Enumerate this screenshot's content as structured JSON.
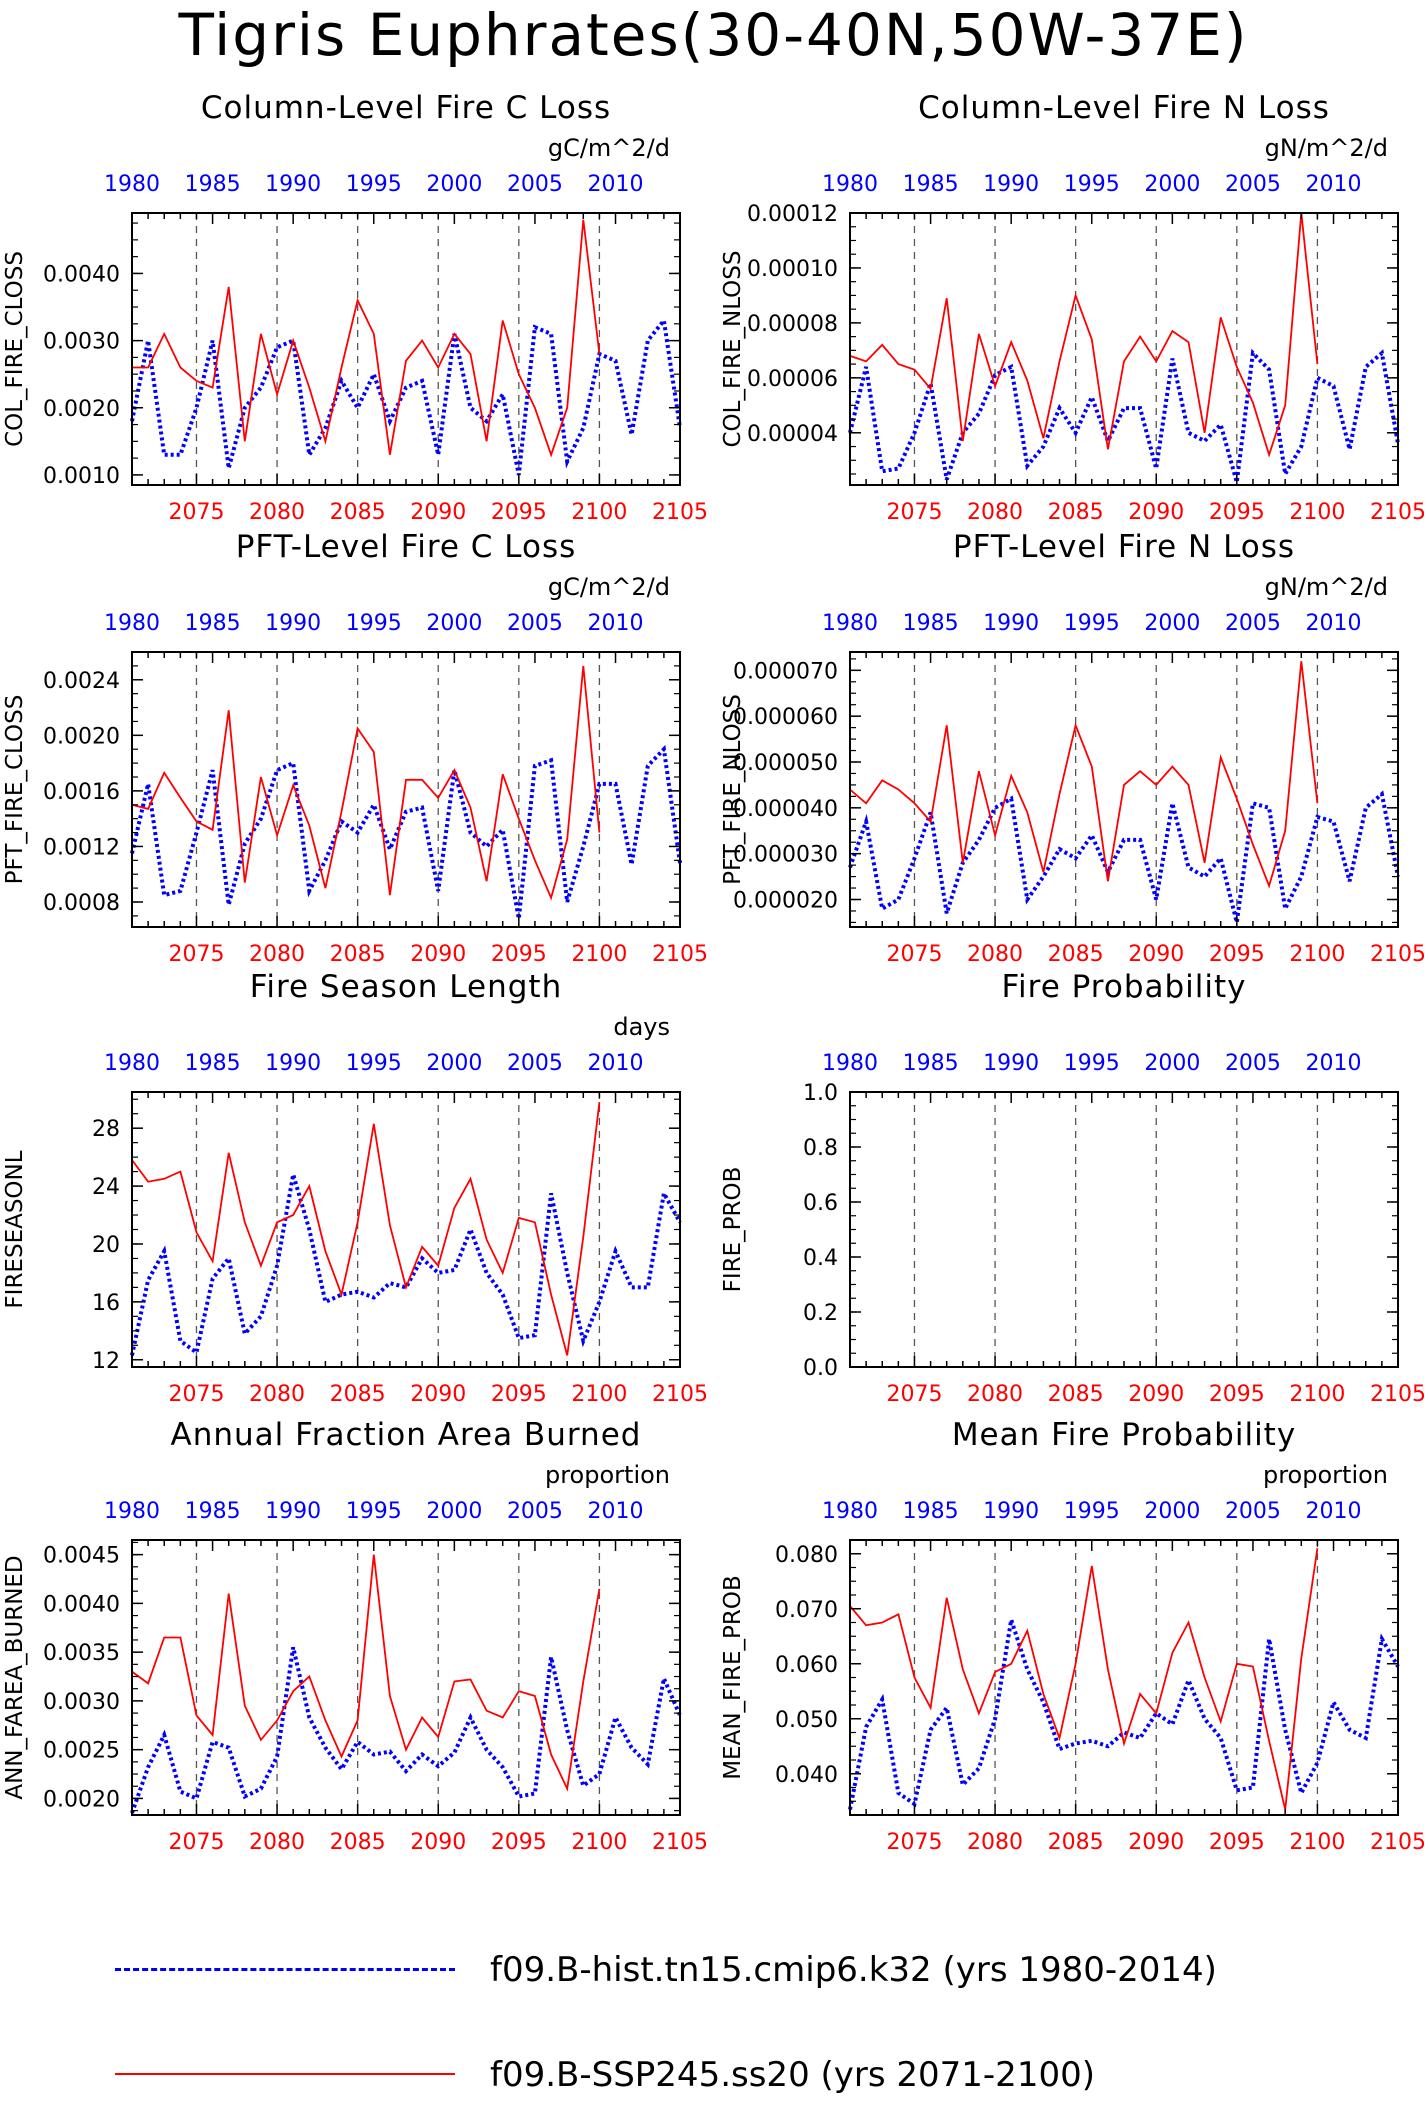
{
  "title": "Tigris Euphrates(30-40N,50W-37E)",
  "colors": {
    "hist": "#0000ff",
    "ssp": "#ff0000",
    "axis": "#000000",
    "grid": "#555555"
  },
  "legend": [
    {
      "name": "f09.B-hist.tn15.cmip6.k32 (yrs 1980-2014)",
      "color": "#0000ff",
      "style": "dashed"
    },
    {
      "name": "f09.B-SSP245.ss20 (yrs 2071-2100)",
      "color": "#ff0000",
      "style": "solid"
    }
  ],
  "chart_data": [
    {
      "type": "line",
      "title": "Column-Level Fire C Loss",
      "units": "gC/m^2/d",
      "ylabel": "COL_FIRE_CLOSS",
      "ylim": [
        0.00085,
        0.0049
      ],
      "yticks": [
        "0.0010",
        "0.0020",
        "0.0030",
        "0.0040"
      ],
      "top_axis": {
        "range": [
          1980,
          2014
        ],
        "ticks": [
          "1980",
          "1985",
          "1990",
          "1995",
          "2000",
          "2005",
          "2010"
        ]
      },
      "bottom_axis": {
        "range": [
          2071,
          2105
        ],
        "ticks": [
          "2075",
          "2080",
          "2085",
          "2090",
          "2095",
          "2100",
          "2105"
        ]
      },
      "grid_x": [
        2075,
        2080,
        2085,
        2090,
        2095,
        2100
      ],
      "series": [
        {
          "name": "f09.B-hist.tn15.cmip6.k32 (yrs 1980-2014)",
          "axis": "top",
          "start": 1980,
          "values": [
            0.0018,
            0.003,
            0.0013,
            0.0013,
            0.002,
            0.003,
            0.0011,
            0.002,
            0.0023,
            0.0029,
            0.003,
            0.0013,
            0.0017,
            0.0024,
            0.002,
            0.0025,
            0.0018,
            0.0023,
            0.0024,
            0.0013,
            0.0031,
            0.002,
            0.0018,
            0.0022,
            0.001,
            0.0032,
            0.0031,
            0.0012,
            0.0017,
            0.0028,
            0.0027,
            0.0016,
            0.003,
            0.0033,
            0.0017
          ]
        },
        {
          "name": "f09.B-SSP245.ss20 (yrs 2071-2100)",
          "axis": "bottom",
          "start": 2071,
          "values": [
            0.0026,
            0.0026,
            0.0031,
            0.0026,
            0.0024,
            0.0023,
            0.0038,
            0.0015,
            0.0031,
            0.0022,
            0.003,
            0.0023,
            0.0015,
            0.0026,
            0.0036,
            0.0031,
            0.0013,
            0.0027,
            0.003,
            0.0026,
            0.0031,
            0.0028,
            0.0015,
            0.0033,
            0.0025,
            0.002,
            0.0013,
            0.002,
            0.0048,
            0.0028
          ]
        }
      ]
    },
    {
      "type": "line",
      "title": "Column-Level Fire N Loss",
      "units": "gN/m^2/d",
      "ylabel": "COL_FIRE_NLOSS",
      "ylim": [
        2.1e-05,
        0.00012
      ],
      "yticks": [
        "0.00004",
        "0.00006",
        "0.00008",
        "0.00010",
        "0.00012"
      ],
      "top_axis": {
        "range": [
          1980,
          2014
        ],
        "ticks": [
          "1980",
          "1985",
          "1990",
          "1995",
          "2000",
          "2005",
          "2010"
        ]
      },
      "bottom_axis": {
        "range": [
          2071,
          2105
        ],
        "ticks": [
          "2075",
          "2080",
          "2085",
          "2090",
          "2095",
          "2100",
          "2105"
        ]
      },
      "grid_x": [
        2075,
        2080,
        2085,
        2090,
        2095,
        2100
      ],
      "series": [
        {
          "name": "f09.B-hist.tn15.cmip6.k32 (yrs 1980-2014)",
          "axis": "top",
          "start": 1980,
          "values": [
            4e-05,
            6.4e-05,
            2.6e-05,
            2.7e-05,
            4e-05,
            5.8e-05,
            2.3e-05,
            4e-05,
            4.7e-05,
            6.1e-05,
            6.4e-05,
            2.8e-05,
            3.5e-05,
            4.9e-05,
            4e-05,
            5.3e-05,
            3.7e-05,
            4.9e-05,
            4.9e-05,
            2.7e-05,
            6.7e-05,
            4e-05,
            3.7e-05,
            4.3e-05,
            2.2e-05,
            6.9e-05,
            6.3e-05,
            2.5e-05,
            3.5e-05,
            6e-05,
            5.7e-05,
            3.4e-05,
            6.4e-05,
            6.9e-05,
            3.6e-05
          ]
        },
        {
          "name": "f09.B-SSP245.ss20 (yrs 2071-2100)",
          "axis": "bottom",
          "start": 2071,
          "values": [
            6.8e-05,
            6.6e-05,
            7.2e-05,
            6.5e-05,
            6.3e-05,
            5.6e-05,
            8.9e-05,
            3.7e-05,
            7.6e-05,
            5.7e-05,
            7.3e-05,
            5.9e-05,
            3.8e-05,
            6.6e-05,
            9e-05,
            7.4e-05,
            3.4e-05,
            6.6e-05,
            7.5e-05,
            6.6e-05,
            7.7e-05,
            7.3e-05,
            4e-05,
            8.2e-05,
            6.4e-05,
            5.1e-05,
            3.2e-05,
            5e-05,
            0.00012,
            6.5e-05
          ]
        }
      ]
    },
    {
      "type": "line",
      "title": "PFT-Level Fire C Loss",
      "units": "gC/m^2/d",
      "ylabel": "PFT_FIRE_CLOSS",
      "ylim": [
        0.00062,
        0.0026
      ],
      "yticks": [
        "0.0008",
        "0.0012",
        "0.0016",
        "0.0020",
        "0.0024"
      ],
      "top_axis": {
        "range": [
          1980,
          2014
        ],
        "ticks": [
          "1980",
          "1985",
          "1990",
          "1995",
          "2000",
          "2005",
          "2010"
        ]
      },
      "bottom_axis": {
        "range": [
          2071,
          2105
        ],
        "ticks": [
          "2075",
          "2080",
          "2085",
          "2090",
          "2095",
          "2100",
          "2105"
        ]
      },
      "grid_x": [
        2075,
        2080,
        2085,
        2090,
        2095,
        2100
      ],
      "series": [
        {
          "name": "f09.B-hist.tn15.cmip6.k32 (yrs 1980-2014)",
          "axis": "top",
          "start": 1980,
          "values": [
            0.00115,
            0.00165,
            0.00085,
            0.00088,
            0.0013,
            0.00175,
            0.00078,
            0.00122,
            0.0014,
            0.00175,
            0.0018,
            0.00088,
            0.0011,
            0.00138,
            0.0013,
            0.0015,
            0.00118,
            0.00145,
            0.00148,
            0.00088,
            0.00175,
            0.0013,
            0.0012,
            0.00132,
            0.00068,
            0.00178,
            0.00182,
            0.0008,
            0.0012,
            0.00165,
            0.00165,
            0.00107,
            0.00178,
            0.0019,
            0.00108
          ]
        },
        {
          "name": "f09.B-SSP245.ss20 (yrs 2071-2100)",
          "axis": "bottom",
          "start": 2071,
          "values": [
            0.0015,
            0.00147,
            0.00173,
            0.00155,
            0.00138,
            0.00132,
            0.00218,
            0.00094,
            0.0017,
            0.00128,
            0.00164,
            0.00135,
            0.0009,
            0.00145,
            0.00205,
            0.00188,
            0.00085,
            0.00168,
            0.00168,
            0.00155,
            0.00175,
            0.00148,
            0.00095,
            0.00172,
            0.0014,
            0.0011,
            0.00083,
            0.00125,
            0.0025,
            0.0013
          ]
        }
      ]
    },
    {
      "type": "line",
      "title": "PFT-Level Fire N Loss",
      "units": "gN/m^2/d",
      "ylabel": "PFT_FIRE_NLOSS",
      "ylim": [
        1.4e-05,
        7.4e-05
      ],
      "yticks": [
        "0.000020",
        "0.000030",
        "0.000040",
        "0.000050",
        "0.000060",
        "0.000070"
      ],
      "top_axis": {
        "range": [
          1980,
          2014
        ],
        "ticks": [
          "1980",
          "1985",
          "1990",
          "1995",
          "2000",
          "2005",
          "2010"
        ]
      },
      "bottom_axis": {
        "range": [
          2071,
          2105
        ],
        "ticks": [
          "2075",
          "2080",
          "2085",
          "2090",
          "2095",
          "2100",
          "2105"
        ]
      },
      "grid_x": [
        2075,
        2080,
        2085,
        2090,
        2095,
        2100
      ],
      "series": [
        {
          "name": "f09.B-hist.tn15.cmip6.k32 (yrs 1980-2014)",
          "axis": "top",
          "start": 1980,
          "values": [
            2.7e-05,
            3.7e-05,
            1.8e-05,
            2e-05,
            2.9e-05,
            3.9e-05,
            1.7e-05,
            2.8e-05,
            3.3e-05,
            4e-05,
            4.2e-05,
            2e-05,
            2.5e-05,
            3.1e-05,
            2.9e-05,
            3.4e-05,
            2.6e-05,
            3.3e-05,
            3.3e-05,
            2e-05,
            4.1e-05,
            2.7e-05,
            2.5e-05,
            2.9e-05,
            1.5e-05,
            4.1e-05,
            4e-05,
            1.8e-05,
            2.5e-05,
            3.8e-05,
            3.7e-05,
            2.4e-05,
            4e-05,
            4.3e-05,
            2.5e-05
          ]
        },
        {
          "name": "f09.B-SSP245.ss20 (yrs 2071-2100)",
          "axis": "bottom",
          "start": 2071,
          "values": [
            4.4e-05,
            4.1e-05,
            4.6e-05,
            4.4e-05,
            4.1e-05,
            3.7e-05,
            5.8e-05,
            2.8e-05,
            4.8e-05,
            3.4e-05,
            4.7e-05,
            3.9e-05,
            2.6e-05,
            4.3e-05,
            5.8e-05,
            4.9e-05,
            2.4e-05,
            4.5e-05,
            4.8e-05,
            4.5e-05,
            4.9e-05,
            4.5e-05,
            2.8e-05,
            5.1e-05,
            4.2e-05,
            3.2e-05,
            2.3e-05,
            3.5e-05,
            7.2e-05,
            4.1e-05
          ]
        }
      ]
    },
    {
      "type": "line",
      "title": "Fire Season Length",
      "units": "days",
      "ylabel": "FIRESEASONL",
      "ylim": [
        11.5,
        30.5
      ],
      "yticks": [
        "12",
        "16",
        "20",
        "24",
        "28"
      ],
      "top_axis": {
        "range": [
          1980,
          2014
        ],
        "ticks": [
          "1980",
          "1985",
          "1990",
          "1995",
          "2000",
          "2005",
          "2010"
        ]
      },
      "bottom_axis": {
        "range": [
          2071,
          2105
        ],
        "ticks": [
          "2075",
          "2080",
          "2085",
          "2090",
          "2095",
          "2100",
          "2105"
        ]
      },
      "grid_x": [
        2075,
        2080,
        2085,
        2090,
        2095,
        2100
      ],
      "series": [
        {
          "name": "f09.B-hist.tn15.cmip6.k32 (yrs 1980-2014)",
          "axis": "top",
          "start": 1980,
          "values": [
            12.3,
            17.5,
            19.5,
            13.3,
            12.5,
            17.6,
            19.0,
            13.8,
            15.0,
            18.5,
            24.8,
            21.0,
            16.0,
            16.5,
            16.7,
            16.3,
            17.3,
            17.0,
            19.0,
            18.0,
            18.2,
            21.0,
            18.0,
            16.5,
            13.5,
            13.7,
            23.5,
            18.0,
            13.3,
            16.0,
            19.5,
            17.0,
            17.0,
            23.5,
            21.5
          ]
        },
        {
          "name": "f09.B-SSP245.ss20 (yrs 2071-2100)",
          "axis": "bottom",
          "start": 2071,
          "values": [
            25.8,
            24.3,
            24.5,
            25.0,
            20.8,
            18.8,
            26.3,
            21.5,
            18.5,
            21.5,
            22.0,
            24.0,
            19.5,
            16.5,
            21.5,
            28.3,
            21.3,
            17.0,
            19.8,
            18.5,
            22.5,
            24.5,
            20.3,
            18.0,
            21.8,
            21.5,
            16.5,
            12.3,
            20.5,
            29.8
          ]
        }
      ]
    },
    {
      "type": "line",
      "title": "Fire Probability",
      "units": "",
      "ylabel": "FIRE_PROB",
      "ylim": [
        0,
        1
      ],
      "yticks": [
        "0.0",
        "0.2",
        "0.4",
        "0.6",
        "0.8",
        "1.0"
      ],
      "top_axis": {
        "range": [
          1980,
          2014
        ],
        "ticks": [
          "1980",
          "1985",
          "1990",
          "1995",
          "2000",
          "2005",
          "2010"
        ]
      },
      "bottom_axis": {
        "range": [
          2071,
          2105
        ],
        "ticks": [
          "2075",
          "2080",
          "2085",
          "2090",
          "2095",
          "2100",
          "2105"
        ]
      },
      "grid_x": [
        2075,
        2080,
        2085,
        2090,
        2095,
        2100
      ],
      "series": []
    },
    {
      "type": "line",
      "title": "Annual Fraction Area Burned",
      "units": "proportion",
      "ylabel": "ANN_FAREA_BURNED",
      "ylim": [
        0.00183,
        0.00465
      ],
      "yticks": [
        "0.0020",
        "0.0025",
        "0.0030",
        "0.0035",
        "0.0040",
        "0.0045"
      ],
      "top_axis": {
        "range": [
          1980,
          2014
        ],
        "ticks": [
          "1980",
          "1985",
          "1990",
          "1995",
          "2000",
          "2005",
          "2010"
        ]
      },
      "bottom_axis": {
        "range": [
          2071,
          2105
        ],
        "ticks": [
          "2075",
          "2080",
          "2085",
          "2090",
          "2095",
          "2100",
          "2105"
        ]
      },
      "grid_x": [
        2075,
        2080,
        2085,
        2090,
        2095,
        2100
      ],
      "series": [
        {
          "name": "f09.B-hist.tn15.cmip6.k32 (yrs 1980-2014)",
          "axis": "top",
          "start": 1980,
          "values": [
            0.00185,
            0.00232,
            0.00265,
            0.00207,
            0.002,
            0.00258,
            0.00252,
            0.00202,
            0.0021,
            0.00243,
            0.00355,
            0.00283,
            0.00252,
            0.0023,
            0.00258,
            0.00245,
            0.00248,
            0.00228,
            0.00245,
            0.00233,
            0.00247,
            0.00283,
            0.0025,
            0.00232,
            0.00202,
            0.00205,
            0.00345,
            0.0027,
            0.00213,
            0.00225,
            0.00283,
            0.00252,
            0.00235,
            0.00323,
            0.00285
          ]
        },
        {
          "name": "f09.B-SSP245.ss20 (yrs 2071-2100)",
          "axis": "bottom",
          "start": 2071,
          "values": [
            0.0033,
            0.00318,
            0.00365,
            0.00365,
            0.00285,
            0.00265,
            0.0041,
            0.00295,
            0.0026,
            0.0028,
            0.0031,
            0.00325,
            0.0028,
            0.00243,
            0.0028,
            0.0045,
            0.00305,
            0.0025,
            0.00283,
            0.00263,
            0.0032,
            0.00322,
            0.0029,
            0.00283,
            0.0031,
            0.00305,
            0.00245,
            0.0021,
            0.0032,
            0.00415
          ]
        }
      ]
    },
    {
      "type": "line",
      "title": "Mean Fire Probability",
      "units": "proportion",
      "ylabel": "MEAN_FIRE_PROB",
      "ylim": [
        0.0325,
        0.0825
      ],
      "yticks": [
        "0.040",
        "0.050",
        "0.060",
        "0.070",
        "0.080"
      ],
      "top_axis": {
        "range": [
          1980,
          2014
        ],
        "ticks": [
          "1980",
          "1985",
          "1990",
          "1995",
          "2000",
          "2005",
          "2010"
        ]
      },
      "bottom_axis": {
        "range": [
          2071,
          2105
        ],
        "ticks": [
          "2075",
          "2080",
          "2085",
          "2090",
          "2095",
          "2100",
          "2105"
        ]
      },
      "grid_x": [
        2075,
        2080,
        2085,
        2090,
        2095,
        2100
      ],
      "series": [
        {
          "name": "f09.B-hist.tn15.cmip6.k32 (yrs 1980-2014)",
          "axis": "top",
          "start": 1980,
          "values": [
            0.0335,
            0.0485,
            0.0535,
            0.0365,
            0.0345,
            0.048,
            0.052,
            0.038,
            0.041,
            0.05,
            0.068,
            0.059,
            0.053,
            0.0445,
            0.0455,
            0.046,
            0.045,
            0.0475,
            0.0465,
            0.051,
            0.049,
            0.057,
            0.05,
            0.0465,
            0.037,
            0.0375,
            0.0645,
            0.048,
            0.0365,
            0.042,
            0.053,
            0.048,
            0.0465,
            0.0645,
            0.0595
          ]
        },
        {
          "name": "f09.B-SSP245.ss20 (yrs 2071-2100)",
          "axis": "bottom",
          "start": 2071,
          "values": [
            0.0705,
            0.067,
            0.0675,
            0.069,
            0.0575,
            0.052,
            0.072,
            0.059,
            0.051,
            0.0585,
            0.06,
            0.066,
            0.0545,
            0.0465,
            0.06,
            0.0778,
            0.059,
            0.0455,
            0.0545,
            0.051,
            0.062,
            0.0675,
            0.0575,
            0.0495,
            0.06,
            0.0595,
            0.046,
            0.0335,
            0.061,
            0.081
          ]
        }
      ]
    }
  ]
}
